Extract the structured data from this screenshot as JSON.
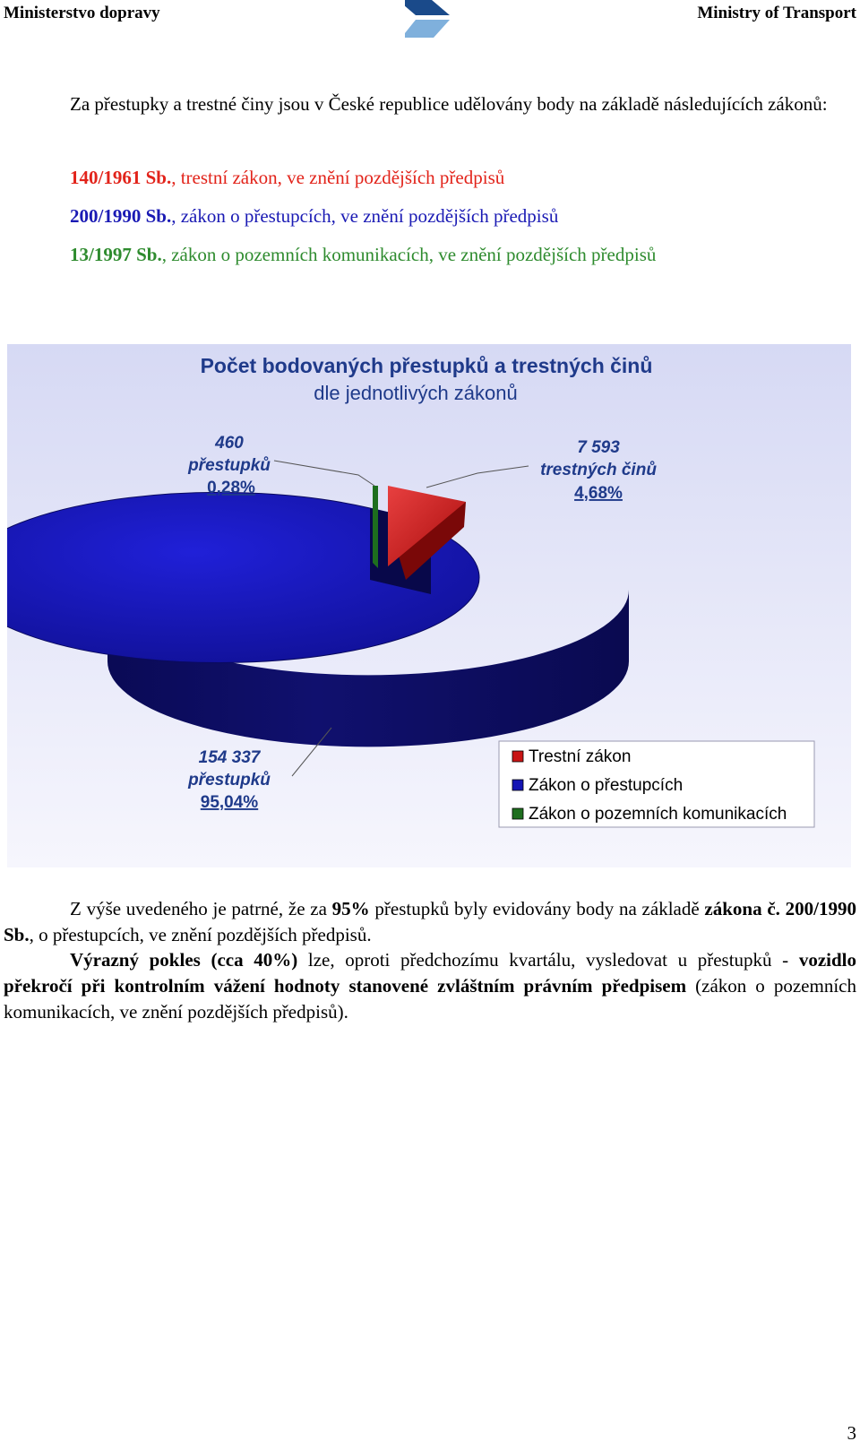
{
  "header": {
    "left": "Ministerstvo dopravy",
    "right": "Ministry of Transport"
  },
  "intro": "Za přestupky a trestné činy jsou v České republice udělovány body na základě následujících zákonů:",
  "laws": [
    {
      "code": "140/1961 Sb.",
      "desc": ", trestní zákon, ve znění pozdějších předpisů",
      "color": "#e2231a"
    },
    {
      "code": "200/1990 Sb.",
      "desc": ", zákon o přestupcích, ve znění pozdějších předpisů",
      "color": "#1a1ab4"
    },
    {
      "code": "13/1997 Sb.",
      "desc": ", zákon o pozemních komunikacích, ve znění pozdějších předpisů",
      "color": "#2e8b2e"
    }
  ],
  "chart_data": {
    "type": "pie",
    "title": "Počet bodovaných přestupků a trestných činů",
    "subtitle": "dle jednotlivých zákonů",
    "legend_position": "bottom-right",
    "slices": [
      {
        "name": "Trestní zákon",
        "value": 7593,
        "value_label": "7 593",
        "unit_label": "trestných činů",
        "percent_label": "4,68%",
        "color": "#c81414"
      },
      {
        "name": "Zákon o přestupcích",
        "value": 154337,
        "value_label": "154 337",
        "unit_label": "přestupků",
        "percent_label": "95,04%",
        "color": "#1414b4"
      },
      {
        "name": "Zákon o pozemních komunikacích",
        "value": 460,
        "value_label": "460",
        "unit_label": "přestupků",
        "percent_label": "0,28%",
        "color": "#1e6e1e"
      }
    ]
  },
  "conclusion": {
    "p1": [
      "Z výše uvedeného je patrné, že za ",
      "95%",
      " přestupků byly evidovány body na základě ",
      "zákona č. 200/1990 Sb.",
      ", o přestupcích, ve znění pozdějších předpisů."
    ],
    "p2": [
      "Výrazný pokles (cca 40%)",
      " lze, oproti předchozímu kvartálu, vysledovat u přestupků - ",
      "vozidlo překročí při kontrolním vážení hodnoty stanovené zvláštním právním předpisem",
      " (zákon o pozemních komunikacích, ve znění pozdějších předpisů)."
    ]
  },
  "page_number": "3",
  "colors": {
    "title": "#1f3a8a",
    "label": "#1f3a8a",
    "logo": "#1a4a8a"
  }
}
